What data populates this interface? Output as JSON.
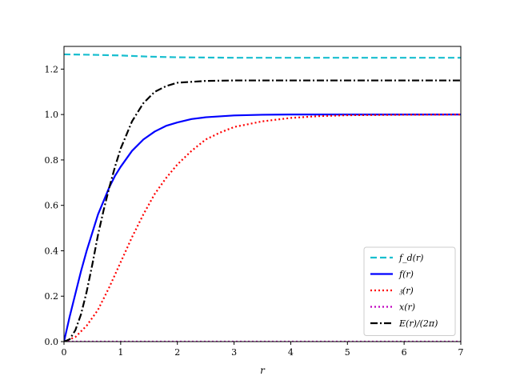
{
  "chart_data": {
    "type": "line",
    "xlabel": "r",
    "ylabel": "",
    "xlim": [
      0,
      7
    ],
    "ylim": [
      0,
      1.3
    ],
    "xticks": [
      "0",
      "1",
      "2",
      "3",
      "4",
      "5",
      "6",
      "7"
    ],
    "yticks": [
      "0.0",
      "0.2",
      "0.4",
      "0.6",
      "0.8",
      "1.0",
      "1.2"
    ],
    "grid": false,
    "legend_position": "lower-right",
    "series": [
      {
        "name": "f_d(r)",
        "color": "#17becf",
        "dash": "dashed",
        "x": [
          0,
          0.5,
          1,
          1.5,
          2,
          2.5,
          3,
          3.5,
          4,
          5,
          6,
          7
        ],
        "y": [
          1.265,
          1.263,
          1.26,
          1.255,
          1.252,
          1.251,
          1.25,
          1.25,
          1.25,
          1.25,
          1.25,
          1.25
        ]
      },
      {
        "name": "f(r)",
        "color": "#0000ff",
        "dash": "solid",
        "x": [
          0,
          0.1,
          0.2,
          0.3,
          0.4,
          0.5,
          0.6,
          0.7,
          0.8,
          0.9,
          1,
          1.2,
          1.4,
          1.6,
          1.8,
          2,
          2.25,
          2.5,
          3,
          3.5,
          4,
          5,
          6,
          7
        ],
        "y": [
          0,
          0.11,
          0.21,
          0.31,
          0.4,
          0.48,
          0.56,
          0.62,
          0.68,
          0.73,
          0.77,
          0.84,
          0.89,
          0.925,
          0.95,
          0.965,
          0.98,
          0.988,
          0.996,
          0.999,
          1.0,
          1.0,
          1.0,
          1.0
        ]
      },
      {
        "name": "𝔷(r)",
        "color": "#ff0000",
        "dash": "dotted",
        "x": [
          0,
          0.2,
          0.4,
          0.6,
          0.8,
          1,
          1.2,
          1.4,
          1.6,
          1.8,
          2,
          2.25,
          2.5,
          2.75,
          3,
          3.5,
          4,
          4.5,
          5,
          6,
          7
        ],
        "y": [
          0,
          0.02,
          0.07,
          0.14,
          0.24,
          0.35,
          0.46,
          0.56,
          0.65,
          0.72,
          0.78,
          0.84,
          0.89,
          0.92,
          0.945,
          0.97,
          0.985,
          0.993,
          0.997,
          0.999,
          1.0
        ]
      },
      {
        "name": "x(r)",
        "color": "#bf00bf",
        "dash": "dotted",
        "x": [
          0,
          7
        ],
        "y": [
          0,
          0
        ]
      },
      {
        "name": "E(r)/(2π)",
        "color": "#000000",
        "dash": "dashdot",
        "x": [
          0,
          0.1,
          0.2,
          0.3,
          0.4,
          0.5,
          0.6,
          0.7,
          0.8,
          0.9,
          1,
          1.2,
          1.4,
          1.6,
          1.8,
          2,
          2.5,
          3,
          3.5,
          4,
          5,
          6,
          7
        ],
        "y": [
          0,
          0.01,
          0.05,
          0.12,
          0.22,
          0.34,
          0.47,
          0.58,
          0.68,
          0.77,
          0.85,
          0.97,
          1.05,
          1.1,
          1.125,
          1.14,
          1.148,
          1.15,
          1.15,
          1.15,
          1.15,
          1.15,
          1.15
        ]
      }
    ]
  }
}
